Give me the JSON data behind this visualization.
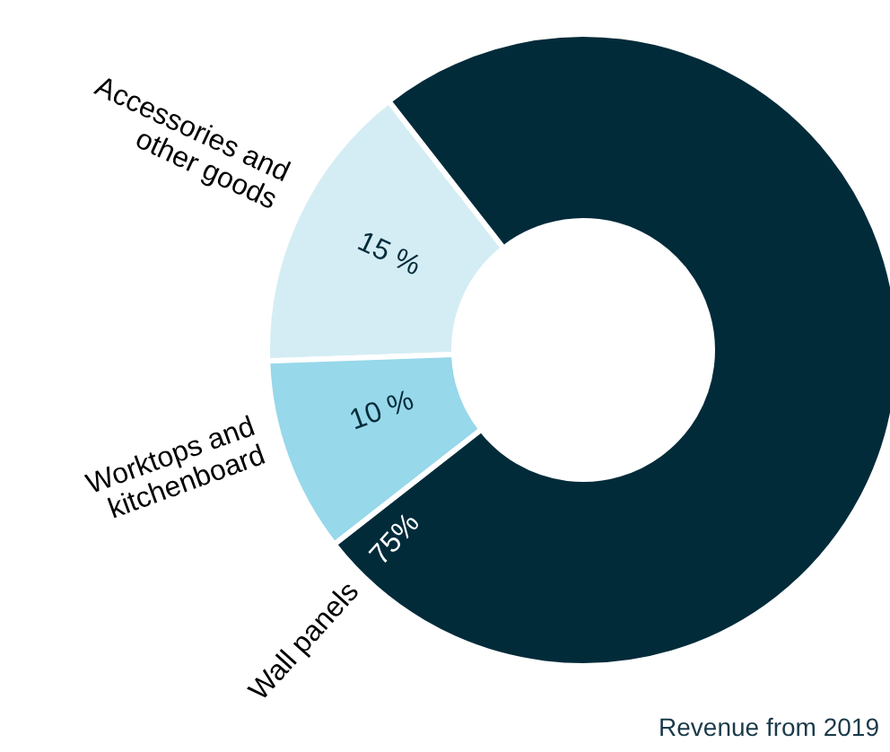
{
  "chart_data": {
    "type": "donut",
    "categories": [
      "Accessories and\nother goods",
      "Worktops and\nkitchenboard",
      "Wall panels"
    ],
    "values": [
      15,
      10,
      75
    ],
    "value_labels": [
      "15 %",
      "10 %",
      "75%"
    ],
    "colors": [
      "#d4edf4",
      "#97d8ea",
      "#022b3a"
    ],
    "annotations": [
      "Revenue from 2019"
    ]
  }
}
